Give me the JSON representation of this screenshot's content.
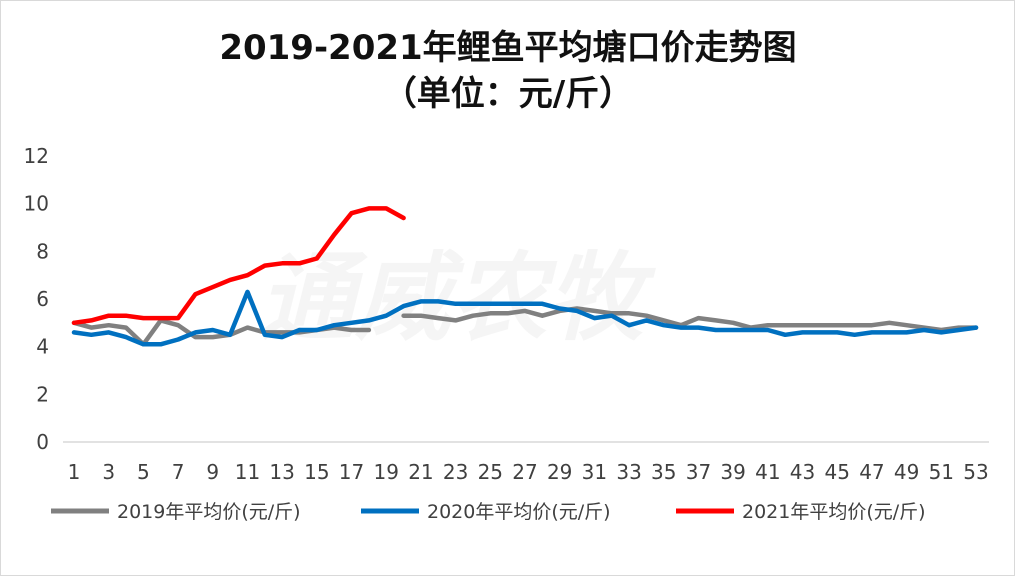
{
  "chart_data": {
    "type": "line",
    "title": "2019-2021年鲤鱼平均塘口价走势图",
    "subtitle": "（单位：元/斤）",
    "watermark": "通威农牧",
    "ylim": [
      0,
      12
    ],
    "y_ticks": [
      0,
      2,
      4,
      6,
      8,
      10,
      12
    ],
    "x_range": [
      1,
      53
    ],
    "x_ticks": [
      1,
      3,
      5,
      7,
      9,
      11,
      13,
      15,
      17,
      19,
      21,
      23,
      25,
      27,
      29,
      31,
      33,
      35,
      37,
      39,
      41,
      43,
      45,
      47,
      49,
      51,
      53
    ],
    "legend_position": "bottom",
    "grid": "horizontal-baseline-only",
    "series": [
      {
        "name": "2019年平均价(元/斤)",
        "color": "#808080",
        "x": [
          1,
          2,
          3,
          4,
          5,
          6,
          7,
          8,
          9,
          10,
          11,
          12,
          13,
          14,
          15,
          16,
          17,
          18,
          19,
          20,
          21,
          22,
          23,
          24,
          25,
          26,
          27,
          28,
          29,
          30,
          31,
          32,
          33,
          34,
          35,
          36,
          37,
          38,
          39,
          40,
          41,
          42,
          43,
          44,
          45,
          46,
          47,
          48,
          49,
          50,
          51,
          52,
          53
        ],
        "values": [
          5.0,
          4.8,
          4.9,
          4.8,
          4.1,
          5.1,
          4.9,
          4.4,
          4.4,
          4.5,
          4.8,
          4.6,
          4.6,
          4.6,
          4.7,
          4.8,
          4.7,
          4.7,
          null,
          5.3,
          5.3,
          5.2,
          5.1,
          5.3,
          5.4,
          5.4,
          5.5,
          5.3,
          5.5,
          5.6,
          5.5,
          5.4,
          5.4,
          5.3,
          5.1,
          4.9,
          5.2,
          5.1,
          5.0,
          4.8,
          4.9,
          4.9,
          4.9,
          4.9,
          4.9,
          4.9,
          4.9,
          5.0,
          4.9,
          4.8,
          4.7,
          4.8,
          4.8
        ]
      },
      {
        "name": "2020年平均价(元/斤)",
        "color": "#0070c0",
        "x": [
          1,
          2,
          3,
          4,
          5,
          6,
          7,
          8,
          9,
          10,
          11,
          12,
          13,
          14,
          15,
          16,
          17,
          18,
          19,
          20,
          21,
          22,
          23,
          24,
          25,
          26,
          27,
          28,
          29,
          30,
          31,
          32,
          33,
          34,
          35,
          36,
          37,
          38,
          39,
          40,
          41,
          42,
          43,
          44,
          45,
          46,
          47,
          48,
          49,
          50,
          51,
          52,
          53
        ],
        "values": [
          4.6,
          4.5,
          4.6,
          4.4,
          4.1,
          4.1,
          4.3,
          4.6,
          4.7,
          4.5,
          6.3,
          4.5,
          4.4,
          4.7,
          4.7,
          4.9,
          5.0,
          5.1,
          5.3,
          5.7,
          5.9,
          5.9,
          5.8,
          5.8,
          5.8,
          5.8,
          5.8,
          5.8,
          5.6,
          5.5,
          5.2,
          5.3,
          4.9,
          5.1,
          4.9,
          4.8,
          4.8,
          4.7,
          4.7,
          4.7,
          4.7,
          4.5,
          4.6,
          4.6,
          4.6,
          4.5,
          4.6,
          4.6,
          4.6,
          4.7,
          4.6,
          4.7,
          4.8
        ]
      },
      {
        "name": "2021年平均价(元/斤)",
        "color": "#ff0000",
        "x": [
          1,
          2,
          3,
          4,
          5,
          6,
          7,
          8,
          9,
          10,
          11,
          12,
          13,
          14,
          15,
          16,
          17,
          18,
          19,
          20
        ],
        "values": [
          5.0,
          5.1,
          5.3,
          5.3,
          5.2,
          5.2,
          5.2,
          6.2,
          6.5,
          6.8,
          7.0,
          7.4,
          7.5,
          7.5,
          7.7,
          8.7,
          9.6,
          9.8,
          9.8,
          9.4
        ]
      }
    ]
  }
}
